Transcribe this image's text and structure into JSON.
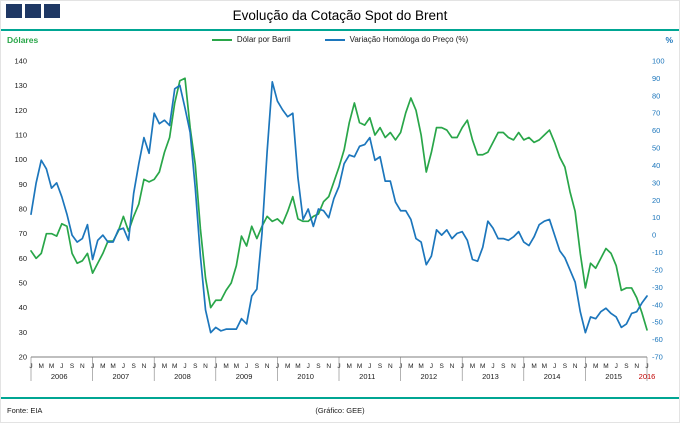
{
  "header": {
    "title": "Evolução da Cotação Spot do Brent"
  },
  "footer": {
    "source": "Fonte: EIA",
    "credit": "(Gráfico: GEE)"
  },
  "colors": {
    "green": "#29a649",
    "blue": "#1c76bc",
    "teal": "#00a693",
    "navy": "#1f3864",
    "accent_red": "#c00000",
    "axis_text": "#1a1a1a",
    "axis_line": "#7f7f7f"
  },
  "chart_data": {
    "type": "line",
    "title": "Evolução da Cotação Spot do Brent",
    "x_frequency": "monthly",
    "x_start": "2006-01",
    "x_end": "2016-01",
    "month_tick_letters": [
      "J",
      "M",
      "M",
      "J",
      "S",
      "N"
    ],
    "years": [
      2006,
      2007,
      2008,
      2009,
      2010,
      2011,
      2012,
      2013,
      2014,
      2015,
      2016
    ],
    "left_axis": {
      "label": "Dólares",
      "min": 20,
      "max": 140,
      "step": 10
    },
    "right_axis": {
      "label": "%",
      "min": -70,
      "max": 100,
      "step": 10
    },
    "grid": false,
    "legend_position": "top-center",
    "series": [
      {
        "name": "Dólar por Barril",
        "axis": "left",
        "color": "#29a649",
        "values": [
          63,
          60,
          62,
          70,
          70,
          69,
          74,
          73,
          62,
          58,
          59,
          62,
          54,
          58,
          62,
          67,
          67,
          71,
          77,
          71,
          77,
          82,
          92,
          91,
          92,
          95,
          103,
          109,
          123,
          132,
          133,
          113,
          98,
          72,
          52,
          40,
          43,
          43,
          47,
          50,
          57,
          69,
          65,
          73,
          68,
          73,
          77,
          75,
          76,
          74,
          79,
          85,
          76,
          75,
          75,
          77,
          78,
          83,
          85,
          91,
          97,
          104,
          115,
          123,
          115,
          114,
          117,
          110,
          113,
          109,
          111,
          108,
          111,
          119,
          125,
          120,
          110,
          95,
          103,
          113,
          113,
          112,
          109,
          109,
          113,
          116,
          108,
          102,
          102,
          103,
          107,
          111,
          111,
          109,
          108,
          111,
          108,
          109,
          107,
          108,
          110,
          112,
          107,
          101,
          97,
          87,
          79,
          62,
          48,
          58,
          56,
          60,
          64,
          62,
          57,
          47,
          48,
          48,
          44,
          38,
          31
        ]
      },
      {
        "name": "Variação Homóloga do Preço (%)",
        "axis": "right",
        "color": "#1c76bc",
        "values": [
          12,
          30,
          43,
          38,
          27,
          30,
          22,
          12,
          0,
          -4,
          -2,
          6,
          -14,
          -3,
          0,
          -4,
          -4,
          3,
          4,
          -3,
          24,
          41,
          56,
          47,
          70,
          64,
          66,
          63,
          84,
          86,
          73,
          59,
          27,
          -12,
          -43,
          -56,
          -53,
          -55,
          -54,
          -54,
          -54,
          -48,
          -51,
          -35,
          -31,
          1,
          48,
          88,
          77,
          72,
          68,
          70,
          33,
          9,
          15,
          5,
          15,
          14,
          10,
          21,
          28,
          41,
          46,
          45,
          51,
          52,
          56,
          43,
          45,
          31,
          31,
          19,
          14,
          14,
          9,
          -2,
          -4,
          -17,
          -12,
          3,
          0,
          3,
          -2,
          1,
          2,
          -3,
          -14,
          -15,
          -7,
          8,
          4,
          -2,
          -2,
          -3,
          -1,
          2,
          -4,
          -6,
          -1,
          6,
          8,
          9,
          0,
          -9,
          -13,
          -20,
          -27,
          -44,
          -56,
          -47,
          -48,
          -44,
          -42,
          -45,
          -47,
          -53,
          -51,
          -45,
          -44,
          -39,
          -35
        ]
      }
    ]
  }
}
